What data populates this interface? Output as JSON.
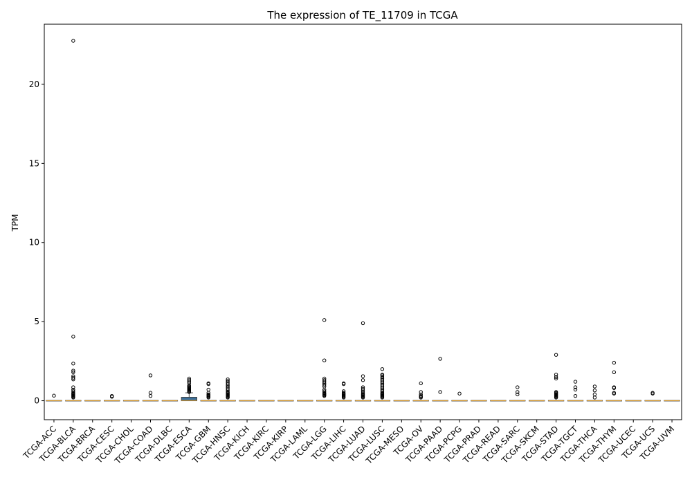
{
  "chart_data": {
    "type": "box",
    "title": "The expression of TE_11709 in TCGA",
    "xlabel": "",
    "ylabel": "TPM",
    "ylim": [
      -1.2,
      23.8
    ],
    "yticks": [
      0,
      5,
      10,
      15,
      20
    ],
    "grid": false,
    "legend": "none",
    "box_color": "#3b6e99",
    "categories": [
      "TCGA-ACC",
      "TCGA-BLCA",
      "TCGA-BRCA",
      "TCGA-CESC",
      "TCGA-CHOL",
      "TCGA-COAD",
      "TCGA-DLBC",
      "TCGA-ESCA",
      "TCGA-GBM",
      "TCGA-HNSC",
      "TCGA-KICH",
      "TCGA-KIRC",
      "TCGA-KIRP",
      "TCGA-LAML",
      "TCGA-LGG",
      "TCGA-LIHC",
      "TCGA-LUAD",
      "TCGA-LUSC",
      "TCGA-MESO",
      "TCGA-OV",
      "TCGA-PAAD",
      "TCGA-PCPG",
      "TCGA-PRAD",
      "TCGA-READ",
      "TCGA-SARC",
      "TCGA-SKCM",
      "TCGA-STAD",
      "TCGA-TGCT",
      "TCGA-THCA",
      "TCGA-THYM",
      "TCGA-UCEC",
      "TCGA-UCS",
      "TCGA-UVM"
    ],
    "boxes": [
      {
        "q1": 0,
        "median": 0,
        "q3": 0,
        "whisker_low": 0,
        "whisker_high": 0,
        "outliers": [
          0.32
        ]
      },
      {
        "q1": 0,
        "median": 0,
        "q3": 0,
        "whisker_low": 0,
        "whisker_high": 0,
        "outliers": [
          22.75,
          4.05,
          2.35,
          1.9,
          1.8,
          1.55,
          1.45,
          1.35,
          0.85,
          0.7,
          0.6,
          0.5,
          0.45,
          0.4,
          0.35,
          0.3,
          0.25,
          0.2
        ]
      },
      {
        "q1": 0,
        "median": 0,
        "q3": 0,
        "whisker_low": 0,
        "whisker_high": 0,
        "outliers": []
      },
      {
        "q1": 0,
        "median": 0,
        "q3": 0,
        "whisker_low": 0,
        "whisker_high": 0,
        "outliers": [
          0.3,
          0.25
        ]
      },
      {
        "q1": 0,
        "median": 0,
        "q3": 0,
        "whisker_low": 0,
        "whisker_high": 0,
        "outliers": []
      },
      {
        "q1": 0,
        "median": 0,
        "q3": 0,
        "whisker_low": 0,
        "whisker_high": 0,
        "outliers": [
          1.6,
          0.5,
          0.3
        ]
      },
      {
        "q1": 0,
        "median": 0,
        "q3": 0,
        "whisker_low": 0,
        "whisker_high": 0,
        "outliers": []
      },
      {
        "q1": 0,
        "median": 0.02,
        "q3": 0.22,
        "whisker_low": 0,
        "whisker_high": 0.5,
        "outliers": [
          1.4,
          1.3,
          1.2,
          1.1,
          0.95,
          0.9,
          0.85,
          0.8,
          0.75,
          0.7,
          0.65,
          0.6,
          0.55
        ]
      },
      {
        "q1": 0,
        "median": 0,
        "q3": 0,
        "whisker_low": 0,
        "whisker_high": 0,
        "outliers": [
          1.1,
          1.05,
          0.7,
          0.5,
          0.4,
          0.35,
          0.3,
          0.25,
          0.2
        ]
      },
      {
        "q1": 0,
        "median": 0,
        "q3": 0,
        "whisker_low": 0,
        "whisker_high": 0,
        "outliers": [
          1.35,
          1.25,
          1.15,
          1.05,
          0.95,
          0.85,
          0.75,
          0.65,
          0.55,
          0.5,
          0.45,
          0.4,
          0.35,
          0.3,
          0.25,
          0.2
        ]
      },
      {
        "q1": 0,
        "median": 0,
        "q3": 0,
        "whisker_low": 0,
        "whisker_high": 0,
        "outliers": []
      },
      {
        "q1": 0,
        "median": 0,
        "q3": 0,
        "whisker_low": 0,
        "whisker_high": 0,
        "outliers": []
      },
      {
        "q1": 0,
        "median": 0,
        "q3": 0,
        "whisker_low": 0,
        "whisker_high": 0,
        "outliers": []
      },
      {
        "q1": 0,
        "median": 0,
        "q3": 0,
        "whisker_low": 0,
        "whisker_high": 0,
        "outliers": []
      },
      {
        "q1": 0,
        "median": 0,
        "q3": 0,
        "whisker_low": 0,
        "whisker_high": 0,
        "outliers": [
          5.1,
          2.55,
          1.4,
          1.3,
          1.2,
          1.1,
          1.0,
          0.9,
          0.7,
          0.6,
          0.5,
          0.45,
          0.4,
          0.35,
          0.3
        ]
      },
      {
        "q1": 0,
        "median": 0,
        "q3": 0,
        "whisker_low": 0,
        "whisker_high": 0,
        "outliers": [
          1.1,
          1.05,
          0.6,
          0.5,
          0.45,
          0.4,
          0.35,
          0.3,
          0.25,
          0.2
        ]
      },
      {
        "q1": 0,
        "median": 0,
        "q3": 0,
        "whisker_low": 0,
        "whisker_high": 0,
        "outliers": [
          4.9,
          1.55,
          1.3,
          0.85,
          0.75,
          0.65,
          0.55,
          0.45,
          0.4,
          0.35,
          0.3,
          0.25,
          0.2
        ]
      },
      {
        "q1": 0,
        "median": 0,
        "q3": 0,
        "whisker_low": 0,
        "whisker_high": 0,
        "outliers": [
          2.0,
          1.65,
          1.6,
          1.5,
          1.4,
          1.3,
          1.2,
          1.1,
          1.0,
          0.9,
          0.8,
          0.7,
          0.6,
          0.5,
          0.45,
          0.4,
          0.35,
          0.3,
          0.25,
          0.2
        ]
      },
      {
        "q1": 0,
        "median": 0,
        "q3": 0,
        "whisker_low": 0,
        "whisker_high": 0,
        "outliers": []
      },
      {
        "q1": 0,
        "median": 0,
        "q3": 0,
        "whisker_low": 0,
        "whisker_high": 0,
        "outliers": [
          1.1,
          0.55,
          0.4,
          0.3,
          0.25,
          0.2
        ]
      },
      {
        "q1": 0,
        "median": 0,
        "q3": 0,
        "whisker_low": 0,
        "whisker_high": 0,
        "outliers": [
          2.65,
          0.55
        ]
      },
      {
        "q1": 0,
        "median": 0,
        "q3": 0,
        "whisker_low": 0,
        "whisker_high": 0,
        "outliers": [
          0.45
        ]
      },
      {
        "q1": 0,
        "median": 0,
        "q3": 0,
        "whisker_low": 0,
        "whisker_high": 0,
        "outliers": []
      },
      {
        "q1": 0,
        "median": 0,
        "q3": 0,
        "whisker_low": 0,
        "whisker_high": 0,
        "outliers": []
      },
      {
        "q1": 0,
        "median": 0,
        "q3": 0,
        "whisker_low": 0,
        "whisker_high": 0,
        "outliers": [
          0.85,
          0.55,
          0.4
        ]
      },
      {
        "q1": 0,
        "median": 0,
        "q3": 0,
        "whisker_low": 0,
        "whisker_high": 0,
        "outliers": []
      },
      {
        "q1": 0,
        "median": 0,
        "q3": 0,
        "whisker_low": 0,
        "whisker_high": 0,
        "outliers": [
          2.9,
          1.65,
          1.5,
          1.4,
          0.55,
          0.5,
          0.45,
          0.4,
          0.35,
          0.3,
          0.25,
          0.2
        ]
      },
      {
        "q1": 0,
        "median": 0,
        "q3": 0,
        "whisker_low": 0,
        "whisker_high": 0,
        "outliers": [
          1.2,
          0.85,
          0.7,
          0.3
        ]
      },
      {
        "q1": 0,
        "median": 0,
        "q3": 0,
        "whisker_low": 0,
        "whisker_high": 0,
        "outliers": [
          0.9,
          0.65,
          0.4,
          0.2
        ]
      },
      {
        "q1": 0,
        "median": 0,
        "q3": 0,
        "whisker_low": 0,
        "whisker_high": 0,
        "outliers": [
          2.4,
          1.8,
          0.85,
          0.8,
          0.5,
          0.45
        ]
      },
      {
        "q1": 0,
        "median": 0,
        "q3": 0,
        "whisker_low": 0,
        "whisker_high": 0,
        "outliers": []
      },
      {
        "q1": 0,
        "median": 0,
        "q3": 0,
        "whisker_low": 0,
        "whisker_high": 0,
        "outliers": [
          0.5,
          0.45
        ]
      },
      {
        "q1": 0,
        "median": 0,
        "q3": 0,
        "whisker_low": 0,
        "whisker_high": 0,
        "outliers": []
      }
    ]
  }
}
